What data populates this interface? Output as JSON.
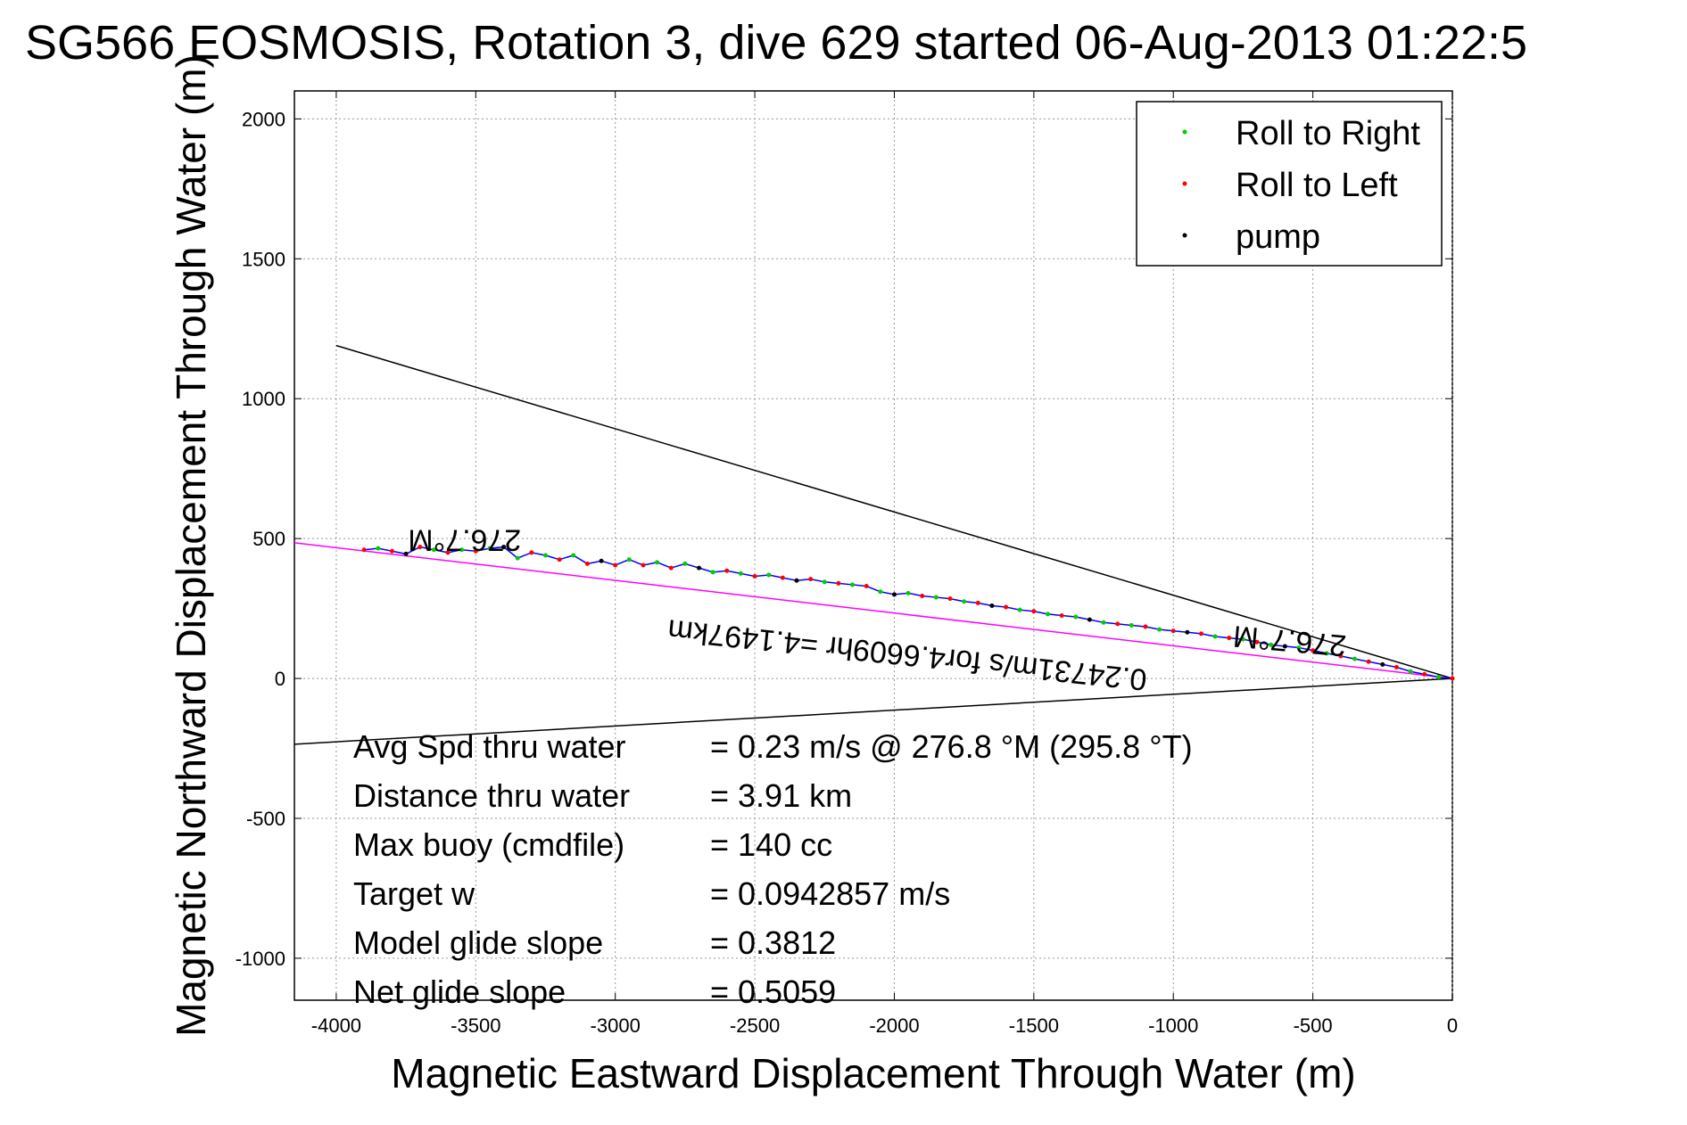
{
  "chart_data": {
    "type": "scatter",
    "title": "SG566 EOSMOSIS, Rotation 3, dive 629 started 06-Aug-2013 01:22:5",
    "xlabel": "Magnetic Eastward Displacement Through Water (m)",
    "ylabel": "Magnetic Northward Displacement Through Water (m)",
    "xlim": [
      -4150,
      0
    ],
    "ylim": [
      -1150,
      2100
    ],
    "xticks": [
      -4000,
      -3500,
      -3000,
      -2500,
      -2000,
      -1500,
      -1000,
      -500,
      0
    ],
    "yticks": [
      -1000,
      -500,
      0,
      500,
      1000,
      1500,
      2000
    ],
    "xtick_labels": [
      "-4000",
      "-3500",
      "-3000",
      "-2500",
      "-2000",
      "-1500",
      "-1000",
      "-500",
      "0"
    ],
    "ytick_labels": [
      "-1000",
      "-500",
      "0",
      "500",
      "1000",
      "1500",
      "2000"
    ],
    "grid": true,
    "legend_position": "top-right",
    "legend": [
      {
        "name": "Roll to Right",
        "color": "#00cc00"
      },
      {
        "name": "Roll to Left",
        "color": "#ff0000"
      },
      {
        "name": "pump",
        "color": "#000000"
      }
    ],
    "track": {
      "color": "#0000ff",
      "x": [
        -3900,
        -3850,
        -3800,
        -3750,
        -3700,
        -3650,
        -3600,
        -3550,
        -3500,
        -3450,
        -3400,
        -3350,
        -3300,
        -3250,
        -3200,
        -3150,
        -3100,
        -3050,
        -3000,
        -2950,
        -2900,
        -2850,
        -2800,
        -2750,
        -2700,
        -2650,
        -2600,
        -2550,
        -2500,
        -2450,
        -2400,
        -2350,
        -2300,
        -2250,
        -2200,
        -2150,
        -2100,
        -2050,
        -2000,
        -1950,
        -1900,
        -1850,
        -1800,
        -1750,
        -1700,
        -1650,
        -1600,
        -1550,
        -1500,
        -1450,
        -1400,
        -1350,
        -1300,
        -1250,
        -1200,
        -1150,
        -1100,
        -1050,
        -1000,
        -950,
        -900,
        -850,
        -800,
        -750,
        -700,
        -650,
        -600,
        -550,
        -500,
        -450,
        -400,
        -350,
        -300,
        -250,
        -200,
        -150,
        -100,
        -50,
        0
      ],
      "y": [
        460,
        465,
        455,
        445,
        470,
        460,
        450,
        460,
        455,
        465,
        470,
        430,
        450,
        440,
        425,
        440,
        410,
        420,
        405,
        425,
        405,
        415,
        395,
        410,
        395,
        380,
        385,
        375,
        365,
        370,
        360,
        350,
        355,
        345,
        340,
        335,
        330,
        310,
        300,
        305,
        295,
        290,
        285,
        275,
        270,
        260,
        255,
        245,
        240,
        230,
        225,
        220,
        210,
        200,
        195,
        190,
        185,
        175,
        170,
        165,
        160,
        150,
        145,
        140,
        130,
        120,
        115,
        110,
        100,
        90,
        80,
        70,
        60,
        50,
        40,
        25,
        15,
        5,
        0
      ]
    },
    "lines": [
      {
        "name": "upper-bound-line",
        "color": "#000000",
        "x": [
          -4000,
          0
        ],
        "y": [
          1190,
          0
        ]
      },
      {
        "name": "lower-bound-line",
        "color": "#000000",
        "x": [
          -4150,
          0
        ],
        "y": [
          -235,
          0
        ]
      },
      {
        "name": "heading-line",
        "color": "#ff00ff",
        "x": [
          -4150,
          0
        ],
        "y": [
          485,
          0
        ]
      }
    ],
    "annotations": [
      {
        "text": "276.7°M",
        "x": -3540,
        "y": 530,
        "rotation": 180
      },
      {
        "text": "276.7°M",
        "x": -580,
        "y": 170,
        "rotation": 185
      },
      {
        "text": "0.24731m/s for4.6609hr =4.1497km",
        "x": -1950,
        "y": 120,
        "rotation": 186
      }
    ],
    "stats": [
      {
        "label": "Avg Spd thru water",
        "value": "=  0.23 m/s @ 276.8 °M (295.8 °T)"
      },
      {
        "label": "Distance thru water",
        "value": "=  3.91 km"
      },
      {
        "label": "Max buoy (cmdfile)",
        "value": "= 140 cc"
      },
      {
        "label": "Target w",
        "value": "= 0.0942857 m/s"
      },
      {
        "label": "Model glide slope",
        "value": "= 0.3812"
      },
      {
        "label": "Net glide slope",
        "value": "= 0.5059"
      }
    ]
  }
}
